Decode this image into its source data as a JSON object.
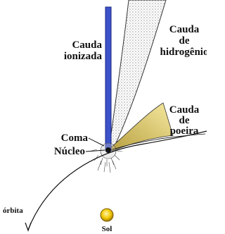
{
  "labels": {
    "ion_tail": [
      "Cauda",
      "ionizada"
    ],
    "hydrogen_tail": [
      "Cauda",
      "de",
      "hidrogênio"
    ],
    "dust_tail": [
      "Cauda",
      "de",
      "poeira"
    ],
    "coma": "Coma",
    "nucleus": "Núcleo",
    "orbit": "órbita",
    "sun": "Sol"
  }
}
